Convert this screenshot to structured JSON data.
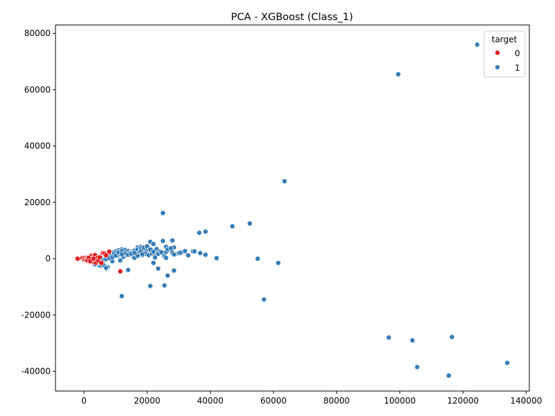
{
  "chart_data": {
    "type": "scatter",
    "title": "PCA - XGBoost (Class_1)",
    "xlabel": "",
    "ylabel": "",
    "xlim": [
      -9000,
      141000
    ],
    "ylim": [
      -47000,
      83000
    ],
    "xticks": [
      0,
      20000,
      40000,
      60000,
      80000,
      100000,
      120000,
      140000
    ],
    "yticks": [
      -40000,
      -20000,
      0,
      20000,
      40000,
      60000,
      80000
    ],
    "grid": false,
    "legend": {
      "title": "target",
      "placement": "top-right"
    },
    "series": [
      {
        "name": "0",
        "color": "#e41a1c",
        "points": [
          [
            -2000,
            0
          ],
          [
            -500,
            200
          ],
          [
            0,
            -300
          ],
          [
            200,
            300
          ],
          [
            500,
            -500
          ],
          [
            800,
            100
          ],
          [
            1000,
            -800
          ],
          [
            1200,
            400
          ],
          [
            1500,
            -200
          ],
          [
            1800,
            -1000
          ],
          [
            2000,
            600
          ],
          [
            2300,
            1000
          ],
          [
            2500,
            -600
          ],
          [
            2800,
            200
          ],
          [
            3000,
            -1200
          ],
          [
            3200,
            800
          ],
          [
            3500,
            1300
          ],
          [
            3800,
            -1400
          ],
          [
            4200,
            300
          ],
          [
            4500,
            -700
          ],
          [
            5000,
            500
          ],
          [
            5500,
            -1500
          ],
          [
            6000,
            2000
          ],
          [
            6500,
            1800
          ],
          [
            7000,
            1200
          ],
          [
            8000,
            2500
          ],
          [
            11500,
            -4500
          ],
          [
            1000,
            -500
          ],
          [
            1500,
            300
          ],
          [
            2000,
            -900
          ],
          [
            3000,
            0
          ]
        ]
      },
      {
        "name": "1",
        "color": "#377eb8",
        "points": [
          [
            124500,
            76000
          ],
          [
            99500,
            65500
          ],
          [
            63500,
            27500
          ],
          [
            25000,
            16200
          ],
          [
            52500,
            12500
          ],
          [
            47000,
            11500
          ],
          [
            38500,
            9600
          ],
          [
            36500,
            9200
          ],
          [
            28000,
            6500
          ],
          [
            25000,
            6300
          ],
          [
            21000,
            6000
          ],
          [
            22000,
            5200
          ],
          [
            18000,
            4200
          ],
          [
            17000,
            4000
          ],
          [
            26000,
            4200
          ],
          [
            28500,
            4000
          ],
          [
            34500,
            2600
          ],
          [
            36800,
            2000
          ],
          [
            33000,
            1200
          ],
          [
            38500,
            1400
          ],
          [
            42000,
            200
          ],
          [
            55000,
            0
          ],
          [
            61500,
            -1500
          ],
          [
            57000,
            -14500
          ],
          [
            23500,
            -3500
          ],
          [
            28500,
            -4200
          ],
          [
            26500,
            -6000
          ],
          [
            21000,
            -9700
          ],
          [
            25500,
            -9500
          ],
          [
            12000,
            -13300
          ],
          [
            14000,
            -4000
          ],
          [
            22000,
            -1500
          ],
          [
            7500,
            -3000
          ],
          [
            7000,
            -3500
          ],
          [
            9000,
            -900
          ],
          [
            11500,
            -600
          ],
          [
            96500,
            -28000
          ],
          [
            104000,
            -29000
          ],
          [
            116500,
            -27800
          ],
          [
            105500,
            -38500
          ],
          [
            115500,
            -41500
          ],
          [
            134000,
            -37000
          ],
          [
            3000,
            -1500
          ],
          [
            4000,
            -2000
          ],
          [
            5000,
            -2500
          ],
          [
            6000,
            -1800
          ],
          [
            2500,
            -1000
          ],
          [
            4500,
            500
          ],
          [
            5500,
            1000
          ],
          [
            6500,
            1500
          ],
          [
            8000,
            1800
          ],
          [
            9000,
            2200
          ],
          [
            10000,
            2500
          ],
          [
            11000,
            3000
          ],
          [
            12000,
            3300
          ],
          [
            13000,
            3100
          ],
          [
            14000,
            2700
          ],
          [
            15000,
            2400
          ],
          [
            16000,
            2900
          ],
          [
            17000,
            3300
          ],
          [
            18000,
            3600
          ],
          [
            19000,
            3000
          ],
          [
            20000,
            2600
          ],
          [
            21000,
            2200
          ],
          [
            22000,
            2800
          ],
          [
            23000,
            3400
          ],
          [
            24000,
            2600
          ],
          [
            25000,
            1800
          ],
          [
            26000,
            2400
          ],
          [
            27000,
            3100
          ],
          [
            28000,
            2200
          ],
          [
            29000,
            1600
          ],
          [
            30000,
            2000
          ],
          [
            31000,
            2300
          ],
          [
            32000,
            2700
          ],
          [
            10500,
            1000
          ],
          [
            11500,
            1500
          ],
          [
            12500,
            700
          ],
          [
            13500,
            1300
          ],
          [
            14500,
            2000
          ],
          [
            15500,
            1000
          ],
          [
            16500,
            1500
          ],
          [
            17500,
            2000
          ],
          [
            18500,
            1200
          ],
          [
            19500,
            1800
          ],
          [
            20500,
            1300
          ],
          [
            21500,
            1900
          ],
          [
            22500,
            1100
          ],
          [
            23500,
            1700
          ],
          [
            24500,
            2300
          ],
          [
            25500,
            900
          ],
          [
            26500,
            3300
          ],
          [
            27500,
            3700
          ],
          [
            7500,
            500
          ],
          [
            8500,
            1200
          ],
          [
            9500,
            1700
          ],
          [
            6000,
            -500
          ],
          [
            7000,
            -200
          ],
          [
            8000,
            200
          ],
          [
            9000,
            500
          ],
          [
            10000,
            1100
          ],
          [
            11000,
            2200
          ],
          [
            12000,
            2700
          ],
          [
            13000,
            1900
          ],
          [
            14000,
            1400
          ],
          [
            15000,
            1700
          ],
          [
            16000,
            300
          ],
          [
            17000,
            1000
          ],
          [
            18000,
            2600
          ],
          [
            19000,
            3900
          ],
          [
            20000,
            4400
          ],
          [
            21000,
            3300
          ],
          [
            22000,
            2500
          ],
          [
            5000,
            -1000
          ],
          [
            4000,
            -1500
          ],
          [
            3500,
            -2000
          ],
          [
            5500,
            -2300
          ],
          [
            6500,
            -2600
          ],
          [
            7000,
            -3200
          ],
          [
            30500,
            2100
          ],
          [
            35000,
            2600
          ],
          [
            26000,
            300
          ],
          [
            22500,
            400
          ],
          [
            28500,
            1500
          ],
          [
            12000,
            1600
          ],
          [
            16000,
            2100
          ],
          [
            18500,
            1600
          ]
        ]
      }
    ]
  }
}
